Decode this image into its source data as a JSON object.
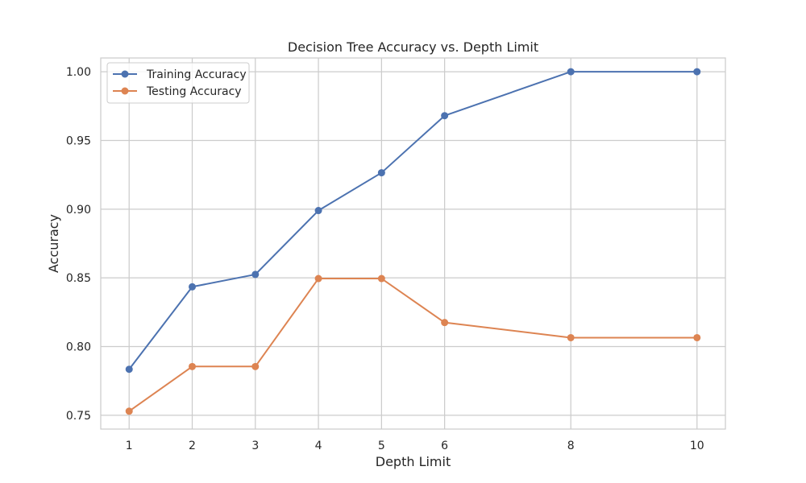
{
  "chart_data": {
    "type": "line",
    "title": "Decision Tree Accuracy vs. Depth Limit",
    "xlabel": "Depth Limit",
    "ylabel": "Accuracy",
    "x": [
      1,
      2,
      3,
      4,
      5,
      6,
      8,
      10
    ],
    "xticks": [
      "1",
      "2",
      "3",
      "4",
      "5",
      "6",
      "8",
      "10"
    ],
    "yticks": [
      "0.75",
      "0.80",
      "0.85",
      "0.90",
      "0.95",
      "1.00"
    ],
    "ylim": [
      0.74,
      1.01
    ],
    "grid": true,
    "legend_position": "top-left",
    "series": [
      {
        "name": "Training Accuracy",
        "color": "#4c72b0",
        "marker": "circle",
        "values": [
          0.7835,
          0.8435,
          0.8525,
          0.899,
          0.9265,
          0.968,
          1.0,
          1.0
        ]
      },
      {
        "name": "Testing Accuracy",
        "color": "#dd8452",
        "marker": "circle",
        "values": [
          0.753,
          0.7855,
          0.7855,
          0.8495,
          0.8495,
          0.8175,
          0.8065,
          0.8065
        ]
      }
    ]
  }
}
